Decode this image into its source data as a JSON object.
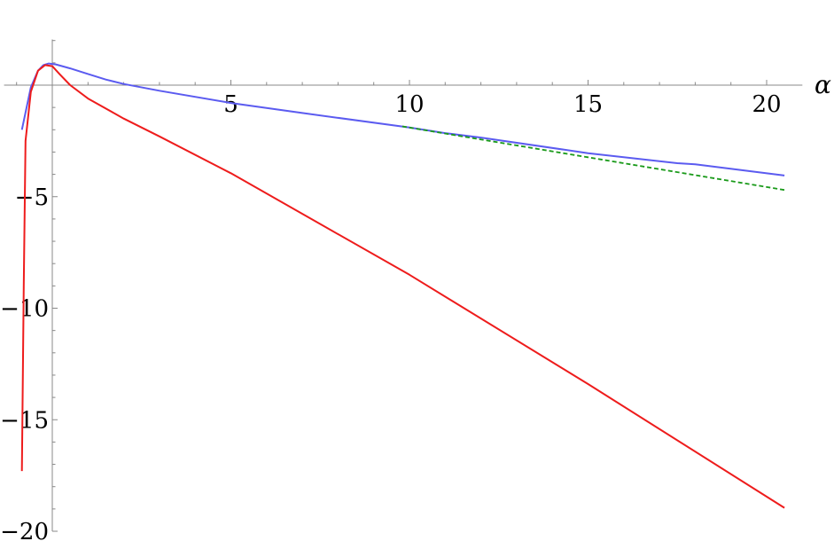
{
  "chart_data": {
    "type": "line",
    "title": "",
    "xlabel": "α",
    "ylabel": "",
    "xlim": [
      -1.35,
      21.0
    ],
    "ylim": [
      -20.0,
      2.05
    ],
    "grid": false,
    "x_ticks": [
      5,
      10,
      15,
      20
    ],
    "x_tick_labels": [
      "5",
      "10",
      "15",
      "20"
    ],
    "y_ticks": [
      -5,
      -10,
      -15,
      -20
    ],
    "y_tick_labels": [
      "−5",
      "−10",
      "−15",
      "−20"
    ],
    "series": [
      {
        "color": "#5b5bf0",
        "dash": "solid",
        "x": [
          -0.85,
          -0.6,
          -0.4,
          -0.25,
          -0.1,
          0.1,
          0.5,
          1.0,
          1.5,
          2.0,
          3.0,
          5.0,
          7.0,
          10.0,
          11.0,
          12.0,
          15.0,
          17.5,
          18.0,
          20.5
        ],
        "y": [
          -2.0,
          -0.1,
          0.65,
          0.9,
          0.97,
          0.93,
          0.75,
          0.5,
          0.25,
          0.05,
          -0.25,
          -0.8,
          -1.25,
          -1.9,
          -2.15,
          -2.35,
          -3.05,
          -3.5,
          -3.55,
          -4.05
        ]
      },
      {
        "color": "#ee1c1c",
        "dash": "solid",
        "x": [
          -0.85,
          -0.8,
          -0.75,
          -0.6,
          -0.4,
          -0.2,
          0.0,
          0.2,
          0.5,
          1.0,
          2.0,
          3.0,
          5.0,
          10.0,
          15.0,
          20.5
        ],
        "y": [
          -17.3,
          -9.0,
          -2.5,
          -0.3,
          0.65,
          0.9,
          0.85,
          0.5,
          0.0,
          -0.6,
          -1.5,
          -2.3,
          -3.95,
          -8.5,
          -13.4,
          -18.95
        ]
      },
      {
        "color": "#1a9a1a",
        "dash": "dashed",
        "x": [
          9.8,
          20.5
        ],
        "y": [
          -1.85,
          -4.7
        ]
      }
    ]
  }
}
